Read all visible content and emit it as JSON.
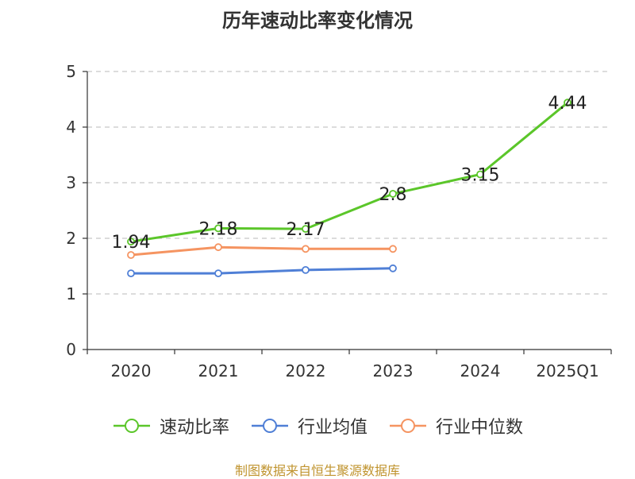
{
  "chart_data": {
    "type": "line",
    "title": "历年速动比率变化情况",
    "categories": [
      "2020",
      "2021",
      "2022",
      "2023",
      "2024",
      "2025Q1"
    ],
    "ylim": [
      0,
      5
    ],
    "yticks": [
      0,
      1,
      2,
      3,
      4,
      5
    ],
    "grid": true,
    "legend_position": "bottom",
    "series": [
      {
        "name": "速动比率",
        "color": "#5bc62a",
        "values": [
          1.94,
          2.18,
          2.17,
          2.8,
          3.15,
          4.44
        ],
        "labels": [
          "1.94",
          "2.18",
          "2.17",
          "2.8",
          "3.15",
          "4.44"
        ]
      },
      {
        "name": "行业均值",
        "color": "#4f7fd6",
        "values": [
          1.37,
          1.37,
          1.43,
          1.46,
          null,
          null
        ]
      },
      {
        "name": "行业中位数",
        "color": "#f59461",
        "values": [
          1.7,
          1.84,
          1.81,
          1.81,
          null,
          null
        ]
      }
    ]
  },
  "footer": {
    "source": "制图数据来自恒生聚源数据库"
  }
}
